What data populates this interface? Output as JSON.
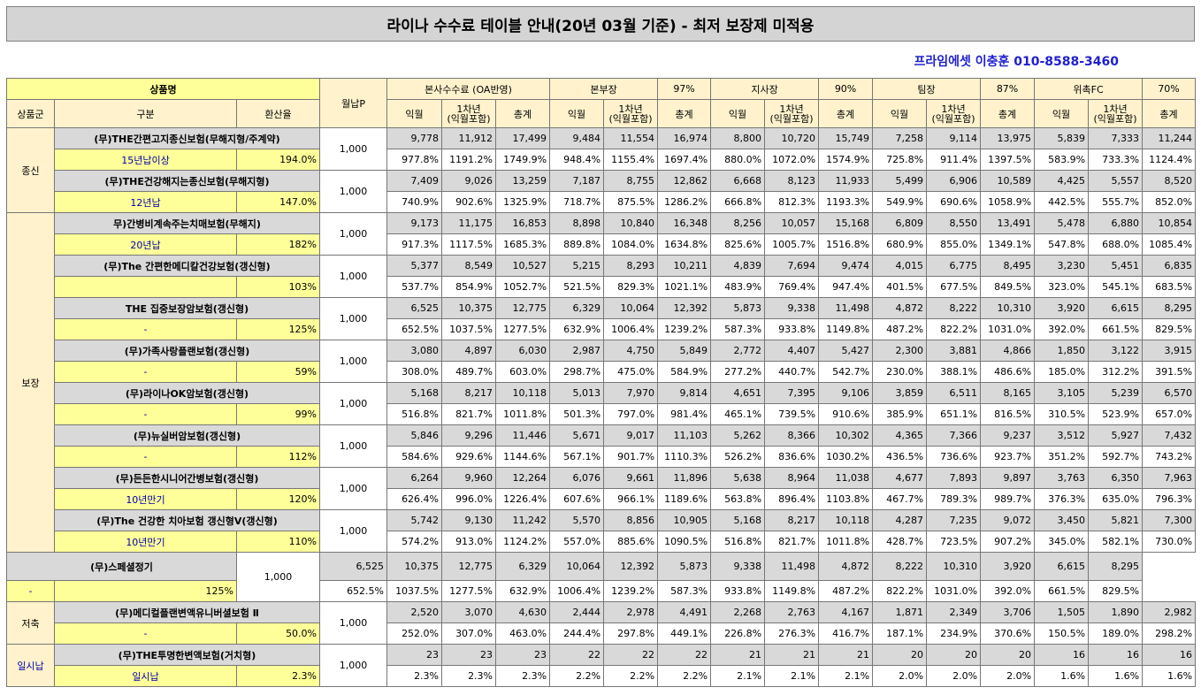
{
  "title": "라이나 수수료 테이블 안내(20년 03월 기준) - 최저 보장제 미적용",
  "contact": "프라임에셋 이충훈 010-8588-3460",
  "header": {
    "product_name": "상품명",
    "premium": "월납P",
    "group_col": "상품군",
    "division_col": "구분",
    "conversion_col": "환산율",
    "sections": [
      {
        "label": "본사수수료 (OA반영)",
        "pct": ""
      },
      {
        "label": "본부장",
        "pct": "97%"
      },
      {
        "label": "지사장",
        "pct": "90%"
      },
      {
        "label": "팀장",
        "pct": "87%"
      },
      {
        "label": "위촉FC",
        "pct": "70%"
      }
    ],
    "sub_cols": [
      "익월",
      "1차년\n(익월포함)",
      "총계"
    ]
  },
  "groups": [
    {
      "name": "종신",
      "span": 4
    },
    {
      "name": "보장",
      "span": 16
    },
    {
      "name": "저축",
      "span": 2
    },
    {
      "name": "일시납",
      "span": 2
    }
  ],
  "products": [
    {
      "name": "(무)THE간편고지종신보험(무해지형/주계약)",
      "division": "15년납이상",
      "rate": "194.0%",
      "premium": "1,000",
      "amounts": [
        "9,778",
        "11,912",
        "17,499",
        "9,484",
        "11,554",
        "16,974",
        "8,800",
        "10,720",
        "15,749",
        "7,258",
        "9,114",
        "13,975",
        "5,839",
        "7,333",
        "11,244"
      ],
      "pcts": [
        "977.8%",
        "1191.2%",
        "1749.9%",
        "948.4%",
        "1155.4%",
        "1697.4%",
        "880.0%",
        "1072.0%",
        "1574.9%",
        "725.8%",
        "911.4%",
        "1397.5%",
        "583.9%",
        "733.3%",
        "1124.4%"
      ]
    },
    {
      "name": "(무)THE건강해지는종신보험(무해지형)",
      "division": "12년납",
      "rate": "147.0%",
      "premium": "1,000",
      "amounts": [
        "7,409",
        "9,026",
        "13,259",
        "7,187",
        "8,755",
        "12,862",
        "6,668",
        "8,123",
        "11,933",
        "5,499",
        "6,906",
        "10,589",
        "4,425",
        "5,557",
        "8,520"
      ],
      "pcts": [
        "740.9%",
        "902.6%",
        "1325.9%",
        "718.7%",
        "875.5%",
        "1286.2%",
        "666.8%",
        "812.3%",
        "1193.3%",
        "549.9%",
        "690.6%",
        "1058.9%",
        "442.5%",
        "555.7%",
        "852.0%"
      ]
    },
    {
      "name": "무)간병비계속주는치매보험(무해지)",
      "division": "20년납",
      "rate": "182%",
      "premium": "1,000",
      "amounts": [
        "9,173",
        "11,175",
        "16,853",
        "8,898",
        "10,840",
        "16,348",
        "8,256",
        "10,057",
        "15,168",
        "6,809",
        "8,550",
        "13,491",
        "5,478",
        "6,880",
        "10,854"
      ],
      "pcts": [
        "917.3%",
        "1117.5%",
        "1685.3%",
        "889.8%",
        "1084.0%",
        "1634.8%",
        "825.6%",
        "1005.7%",
        "1516.8%",
        "680.9%",
        "855.0%",
        "1349.1%",
        "547.8%",
        "688.0%",
        "1085.4%"
      ]
    },
    {
      "name": "(무)The 간편한메디칼건강보험(갱신형)",
      "division": "",
      "rate": "103%",
      "premium": "1,000",
      "amounts": [
        "5,377",
        "8,549",
        "10,527",
        "5,215",
        "8,293",
        "10,211",
        "4,839",
        "7,694",
        "9,474",
        "4,015",
        "6,775",
        "8,495",
        "3,230",
        "5,451",
        "6,835"
      ],
      "pcts": [
        "537.7%",
        "854.9%",
        "1052.7%",
        "521.5%",
        "829.3%",
        "1021.1%",
        "483.9%",
        "769.4%",
        "947.4%",
        "401.5%",
        "677.5%",
        "849.5%",
        "323.0%",
        "545.1%",
        "683.5%"
      ]
    },
    {
      "name": "THE 집중보장암보험(갱신형)",
      "division": "-",
      "rate": "125%",
      "premium": "1,000",
      "amounts": [
        "6,525",
        "10,375",
        "12,775",
        "6,329",
        "10,064",
        "12,392",
        "5,873",
        "9,338",
        "11,498",
        "4,872",
        "8,222",
        "10,310",
        "3,920",
        "6,615",
        "8,295"
      ],
      "pcts": [
        "652.5%",
        "1037.5%",
        "1277.5%",
        "632.9%",
        "1006.4%",
        "1239.2%",
        "587.3%",
        "933.8%",
        "1149.8%",
        "487.2%",
        "822.2%",
        "1031.0%",
        "392.0%",
        "661.5%",
        "829.5%"
      ]
    },
    {
      "name": "(무)가족사랑플랜보험(갱신형)",
      "division": "-",
      "rate": "59%",
      "premium": "1,000",
      "amounts": [
        "3,080",
        "4,897",
        "6,030",
        "2,987",
        "4,750",
        "5,849",
        "2,772",
        "4,407",
        "5,427",
        "2,300",
        "3,881",
        "4,866",
        "1,850",
        "3,122",
        "3,915"
      ],
      "pcts": [
        "308.0%",
        "489.7%",
        "603.0%",
        "298.7%",
        "475.0%",
        "584.9%",
        "277.2%",
        "440.7%",
        "542.7%",
        "230.0%",
        "388.1%",
        "486.6%",
        "185.0%",
        "312.2%",
        "391.5%"
      ]
    },
    {
      "name": "(무)라이나OK암보험(갱신형)",
      "division": "-",
      "rate": "99%",
      "premium": "1,000",
      "amounts": [
        "5,168",
        "8,217",
        "10,118",
        "5,013",
        "7,970",
        "9,814",
        "4,651",
        "7,395",
        "9,106",
        "3,859",
        "6,511",
        "8,165",
        "3,105",
        "5,239",
        "6,570"
      ],
      "pcts": [
        "516.8%",
        "821.7%",
        "1011.8%",
        "501.3%",
        "797.0%",
        "981.4%",
        "465.1%",
        "739.5%",
        "910.6%",
        "385.9%",
        "651.1%",
        "816.5%",
        "310.5%",
        "523.9%",
        "657.0%"
      ]
    },
    {
      "name": "(무)뉴실버암보험(갱신형)",
      "division": "-",
      "rate": "112%",
      "premium": "1,000",
      "amounts": [
        "5,846",
        "9,296",
        "11,446",
        "5,671",
        "9,017",
        "11,103",
        "5,262",
        "8,366",
        "10,302",
        "4,365",
        "7,366",
        "9,237",
        "3,512",
        "5,927",
        "7,432"
      ],
      "pcts": [
        "584.6%",
        "929.6%",
        "1144.6%",
        "567.1%",
        "901.7%",
        "1110.3%",
        "526.2%",
        "836.6%",
        "1030.2%",
        "436.5%",
        "736.6%",
        "923.7%",
        "351.2%",
        "592.7%",
        "743.2%"
      ]
    },
    {
      "name": "(무)든든한시니어간병보험(갱신형)",
      "division": "10년만기",
      "rate": "120%",
      "premium": "1,000",
      "amounts": [
        "6,264",
        "9,960",
        "12,264",
        "6,076",
        "9,661",
        "11,896",
        "5,638",
        "8,964",
        "11,038",
        "4,677",
        "7,893",
        "9,897",
        "3,763",
        "6,350",
        "7,963"
      ],
      "pcts": [
        "626.4%",
        "996.0%",
        "1226.4%",
        "607.6%",
        "966.1%",
        "1189.6%",
        "563.8%",
        "896.4%",
        "1103.8%",
        "467.7%",
        "789.3%",
        "989.7%",
        "376.3%",
        "635.0%",
        "796.3%"
      ]
    },
    {
      "name": "(무)The 건강한 치아보험 갱신형V(갱신형)",
      "division": "10년만기",
      "rate": "110%",
      "premium": "1,000",
      "amounts": [
        "5,742",
        "9,130",
        "11,242",
        "5,570",
        "8,856",
        "10,905",
        "5,168",
        "8,217",
        "10,118",
        "4,287",
        "7,235",
        "9,072",
        "3,450",
        "5,821",
        "7,300"
      ],
      "pcts": [
        "574.2%",
        "913.0%",
        "1124.2%",
        "557.0%",
        "885.6%",
        "1090.5%",
        "516.8%",
        "821.7%",
        "1011.8%",
        "428.7%",
        "723.5%",
        "907.2%",
        "345.0%",
        "582.1%",
        "730.0%"
      ]
    },
    {
      "name": "(무)스페셜정기",
      "division": "-",
      "rate": "125%",
      "premium": "1,000",
      "amounts": [
        "6,525",
        "10,375",
        "12,775",
        "6,329",
        "10,064",
        "12,392",
        "5,873",
        "9,338",
        "11,498",
        "4,872",
        "8,222",
        "10,310",
        "3,920",
        "6,615",
        "8,295"
      ],
      "pcts": [
        "652.5%",
        "1037.5%",
        "1277.5%",
        "632.9%",
        "1006.4%",
        "1239.2%",
        "587.3%",
        "933.8%",
        "1149.8%",
        "487.2%",
        "822.2%",
        "1031.0%",
        "392.0%",
        "661.5%",
        "829.5%"
      ]
    },
    {
      "name": "(무)메디컬플랜변액유니버셜보험 Ⅱ",
      "division": "-",
      "rate": "50.0%",
      "premium": "1,000",
      "amounts": [
        "2,520",
        "3,070",
        "4,630",
        "2,444",
        "2,978",
        "4,491",
        "2,268",
        "2,763",
        "4,167",
        "1,871",
        "2,349",
        "3,706",
        "1,505",
        "1,890",
        "2,982"
      ],
      "pcts": [
        "252.0%",
        "307.0%",
        "463.0%",
        "244.4%",
        "297.8%",
        "449.1%",
        "226.8%",
        "276.3%",
        "416.7%",
        "187.1%",
        "234.9%",
        "370.6%",
        "150.5%",
        "189.0%",
        "298.2%"
      ]
    },
    {
      "name": "(무)THE투명한변액보험(거치형)",
      "division": "일시납",
      "rate": "2.3%",
      "premium": "1,000",
      "amounts": [
        "23",
        "23",
        "23",
        "22",
        "22",
        "22",
        "21",
        "21",
        "21",
        "20",
        "20",
        "20",
        "16",
        "16",
        "16"
      ],
      "pcts": [
        "2.3%",
        "2.3%",
        "2.3%",
        "2.2%",
        "2.2%",
        "2.2%",
        "2.1%",
        "2.1%",
        "2.1%",
        "2.0%",
        "2.0%",
        "2.0%",
        "1.6%",
        "1.6%",
        "1.6%"
      ]
    }
  ]
}
